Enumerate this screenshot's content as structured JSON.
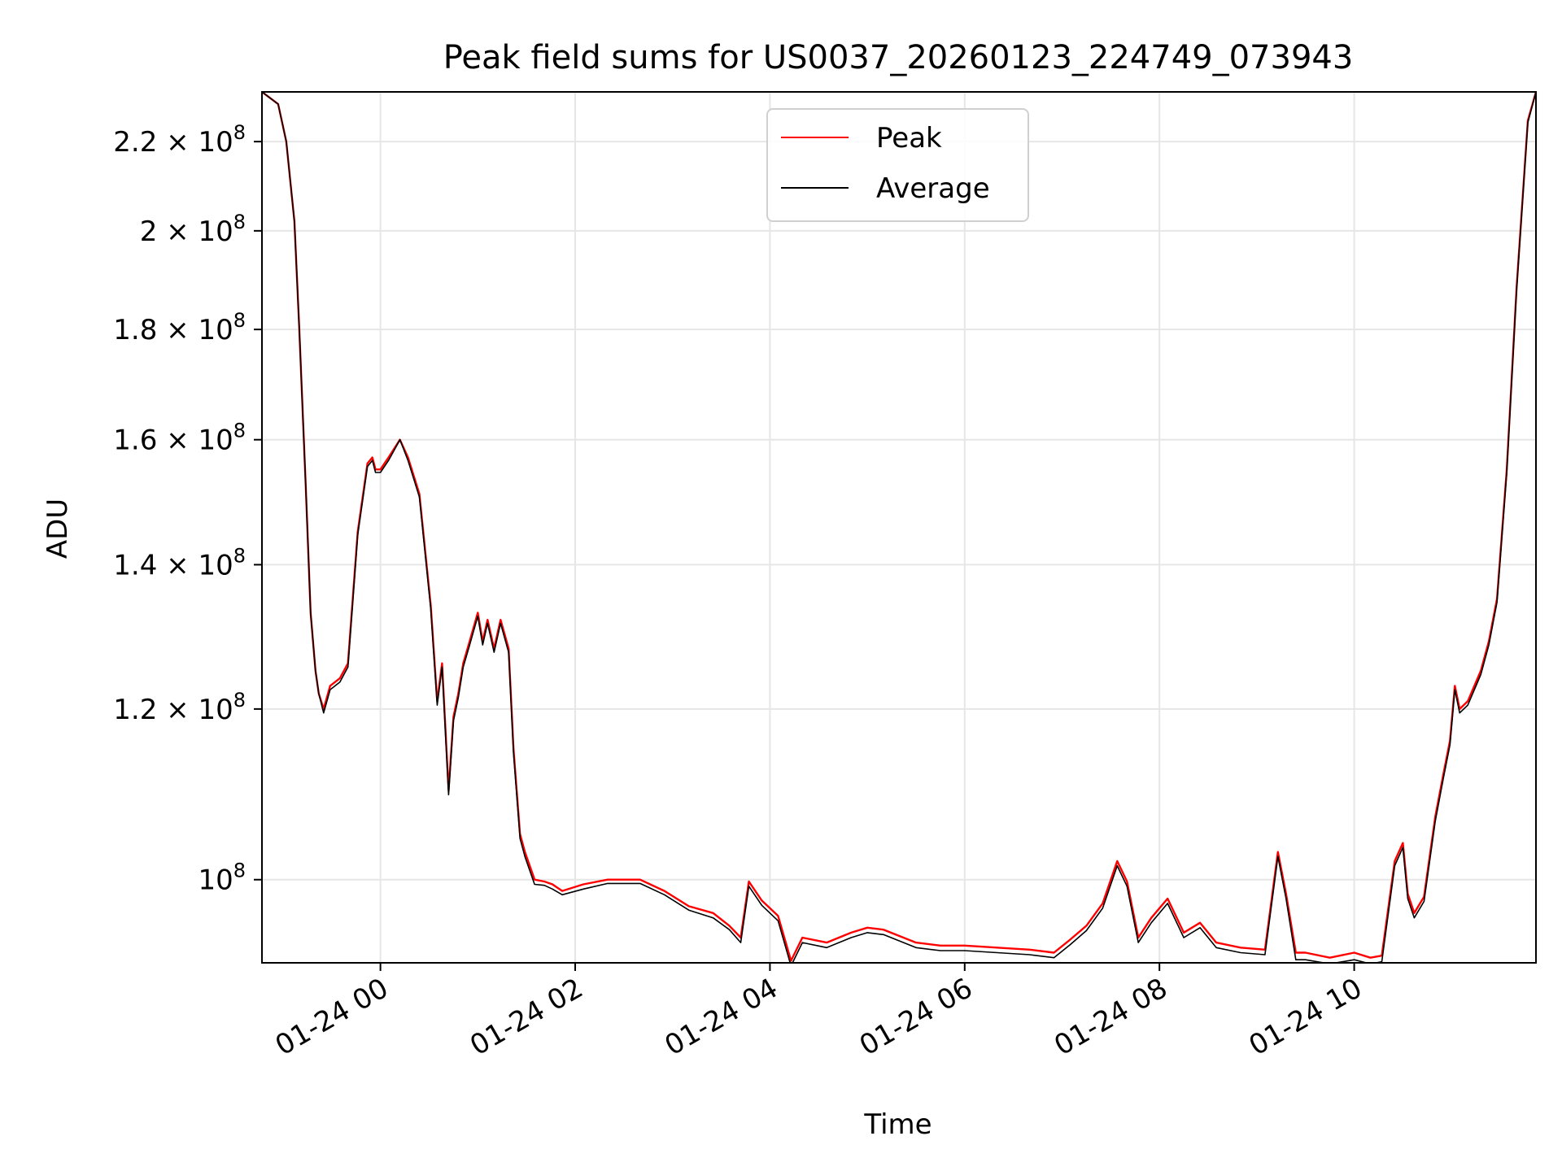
{
  "chart_data": {
    "type": "line",
    "title": "Peak field sums for US0037_20260123_224749_073943",
    "xlabel": "Time",
    "ylabel": "ADU",
    "yscale": "log",
    "xlim": [
      "2026-01-23 22:47",
      "2026-01-24 11:52"
    ],
    "ylim": [
      91500000.0,
      232000000.0
    ],
    "grid": true,
    "legend_position": "upper center",
    "x_ticks": [
      {
        "time": "2026-01-24 00:00",
        "label": "01-24 00"
      },
      {
        "time": "2026-01-24 02:00",
        "label": "01-24 02"
      },
      {
        "time": "2026-01-24 04:00",
        "label": "01-24 04"
      },
      {
        "time": "2026-01-24 06:00",
        "label": "01-24 06"
      },
      {
        "time": "2026-01-24 08:00",
        "label": "01-24 08"
      },
      {
        "time": "2026-01-24 10:00",
        "label": "01-24 10"
      }
    ],
    "y_ticks": [
      {
        "value": 100000000.0,
        "mantissa": "",
        "exponent": "8"
      },
      {
        "value": 120000000.0,
        "mantissa": "1.2",
        "exponent": "8"
      },
      {
        "value": 140000000.0,
        "mantissa": "1.4",
        "exponent": "8"
      },
      {
        "value": 160000000.0,
        "mantissa": "1.6",
        "exponent": "8"
      },
      {
        "value": 180000000.0,
        "mantissa": "1.8",
        "exponent": "8"
      },
      {
        "value": 200000000.0,
        "mantissa": "2",
        "exponent": "8"
      },
      {
        "value": 220000000.0,
        "mantissa": "2.2",
        "exponent": "8"
      }
    ],
    "series": [
      {
        "name": "Peak",
        "color": "#ff0000",
        "x": [
          "2026-01-23 22:47",
          "2026-01-23 22:57",
          "2026-01-23 23:02",
          "2026-01-23 23:07",
          "2026-01-23 23:10",
          "2026-01-23 23:14",
          "2026-01-23 23:17",
          "2026-01-23 23:20",
          "2026-01-23 23:22",
          "2026-01-23 23:25",
          "2026-01-23 23:29",
          "2026-01-23 23:35",
          "2026-01-23 23:40",
          "2026-01-23 23:46",
          "2026-01-23 23:52",
          "2026-01-23 23:55",
          "2026-01-23 23:57",
          "2026-01-24 00:00",
          "2026-01-24 00:05",
          "2026-01-24 00:12",
          "2026-01-24 00:17",
          "2026-01-24 00:24",
          "2026-01-24 00:31",
          "2026-01-24 00:35",
          "2026-01-24 00:38",
          "2026-01-24 00:42",
          "2026-01-24 00:45",
          "2026-01-24 00:48",
          "2026-01-24 00:51",
          "2026-01-24 00:55",
          "2026-01-24 01:00",
          "2026-01-24 01:03",
          "2026-01-24 01:06",
          "2026-01-24 01:10",
          "2026-01-24 01:14",
          "2026-01-24 01:19",
          "2026-01-24 01:22",
          "2026-01-24 01:26",
          "2026-01-24 01:29",
          "2026-01-24 01:35",
          "2026-01-24 01:41",
          "2026-01-24 01:46",
          "2026-01-24 01:52",
          "2026-01-24 02:05",
          "2026-01-24 02:20",
          "2026-01-24 02:40",
          "2026-01-24 02:55",
          "2026-01-24 03:10",
          "2026-01-24 03:25",
          "2026-01-24 03:35",
          "2026-01-24 03:42",
          "2026-01-24 03:47",
          "2026-01-24 03:55",
          "2026-01-24 04:05",
          "2026-01-24 04:13",
          "2026-01-24 04:20",
          "2026-01-24 04:35",
          "2026-01-24 04:50",
          "2026-01-24 05:00",
          "2026-01-24 05:10",
          "2026-01-24 05:30",
          "2026-01-24 05:45",
          "2026-01-24 06:00",
          "2026-01-24 06:20",
          "2026-01-24 06:40",
          "2026-01-24 06:55",
          "2026-01-24 07:05",
          "2026-01-24 07:15",
          "2026-01-24 07:25",
          "2026-01-24 07:34",
          "2026-01-24 07:40",
          "2026-01-24 07:47",
          "2026-01-24 07:55",
          "2026-01-24 08:05",
          "2026-01-24 08:15",
          "2026-01-24 08:25",
          "2026-01-24 08:35",
          "2026-01-24 08:50",
          "2026-01-24 09:05",
          "2026-01-24 09:13",
          "2026-01-24 09:18",
          "2026-01-24 09:24",
          "2026-01-24 09:30",
          "2026-01-24 09:45",
          "2026-01-24 10:00",
          "2026-01-24 10:10",
          "2026-01-24 10:17",
          "2026-01-24 10:25",
          "2026-01-24 10:30",
          "2026-01-24 10:33",
          "2026-01-24 10:37",
          "2026-01-24 10:43",
          "2026-01-24 10:50",
          "2026-01-24 10:55",
          "2026-01-24 10:59",
          "2026-01-24 11:02",
          "2026-01-24 11:05",
          "2026-01-24 11:10",
          "2026-01-24 11:18",
          "2026-01-24 11:23",
          "2026-01-24 11:28",
          "2026-01-24 11:34",
          "2026-01-24 11:40",
          "2026-01-24 11:47",
          "2026-01-24 11:52"
        ],
        "y": [
          232000000.0,
          229000000.0,
          220000000.0,
          202000000.0,
          180000000.0,
          152000000.0,
          133000000.0,
          125000000.0,
          122000000.0,
          120000000.0,
          123000000.0,
          124000000.0,
          126000000.0,
          145000000.0,
          156000000.0,
          157000000.0,
          155000000.0,
          155000000.0,
          157000000.0,
          160000000.0,
          157000000.0,
          151000000.0,
          134000000.0,
          121000000.0,
          126000000.0,
          110000000.0,
          119000000.0,
          122000000.0,
          126000000.0,
          129000000.0,
          133000000.0,
          129000000.0,
          132000000.0,
          128000000.0,
          132000000.0,
          128000000.0,
          115000000.0,
          105000000.0,
          103000000.0,
          100000000.0,
          99800000.0,
          99500000.0,
          98800000.0,
          99500000.0,
          100000000.0,
          100000000.0,
          98800000.0,
          97200000.0,
          96500000.0,
          95200000.0,
          94000000.0,
          99800000.0,
          97800000.0,
          96200000.0,
          91700000.0,
          94000000.0,
          93500000.0,
          94500000.0,
          95000000.0,
          94800000.0,
          93500000.0,
          93200000.0,
          93200000.0,
          93000000.0,
          92800000.0,
          92500000.0,
          93800000.0,
          95200000.0,
          97500000.0,
          102000000.0,
          99800000.0,
          94000000.0,
          96000000.0,
          98000000.0,
          94500000.0,
          95500000.0,
          93500000.0,
          93000000.0,
          92800000.0,
          103000000.0,
          98500000.0,
          92500000.0,
          92500000.0,
          92000000.0,
          92500000.0,
          92000000.0,
          92200000.0,
          102000000.0,
          104000000.0,
          98500000.0,
          96500000.0,
          98200000.0,
          107000000.0,
          112000000.0,
          116000000.0,
          123000000.0,
          120000000.0,
          121000000.0,
          125000000.0,
          129000000.0,
          135000000.0,
          155000000.0,
          188000000.0,
          225000000.0,
          232000000.0
        ]
      },
      {
        "name": "Average",
        "color": "#000000",
        "x": [
          "2026-01-23 22:47",
          "2026-01-23 22:57",
          "2026-01-23 23:02",
          "2026-01-23 23:07",
          "2026-01-23 23:10",
          "2026-01-23 23:14",
          "2026-01-23 23:17",
          "2026-01-23 23:20",
          "2026-01-23 23:22",
          "2026-01-23 23:25",
          "2026-01-23 23:29",
          "2026-01-23 23:35",
          "2026-01-23 23:40",
          "2026-01-23 23:46",
          "2026-01-23 23:52",
          "2026-01-23 23:55",
          "2026-01-23 23:57",
          "2026-01-24 00:00",
          "2026-01-24 00:05",
          "2026-01-24 00:12",
          "2026-01-24 00:17",
          "2026-01-24 00:24",
          "2026-01-24 00:31",
          "2026-01-24 00:35",
          "2026-01-24 00:38",
          "2026-01-24 00:42",
          "2026-01-24 00:45",
          "2026-01-24 00:48",
          "2026-01-24 00:51",
          "2026-01-24 00:55",
          "2026-01-24 01:00",
          "2026-01-24 01:03",
          "2026-01-24 01:06",
          "2026-01-24 01:10",
          "2026-01-24 01:14",
          "2026-01-24 01:19",
          "2026-01-24 01:22",
          "2026-01-24 01:26",
          "2026-01-24 01:29",
          "2026-01-24 01:35",
          "2026-01-24 01:41",
          "2026-01-24 01:46",
          "2026-01-24 01:52",
          "2026-01-24 02:05",
          "2026-01-24 02:20",
          "2026-01-24 02:40",
          "2026-01-24 02:55",
          "2026-01-24 03:10",
          "2026-01-24 03:25",
          "2026-01-24 03:35",
          "2026-01-24 03:42",
          "2026-01-24 03:47",
          "2026-01-24 03:55",
          "2026-01-24 04:05",
          "2026-01-24 04:13",
          "2026-01-24 04:20",
          "2026-01-24 04:35",
          "2026-01-24 04:50",
          "2026-01-24 05:00",
          "2026-01-24 05:10",
          "2026-01-24 05:30",
          "2026-01-24 05:45",
          "2026-01-24 06:00",
          "2026-01-24 06:20",
          "2026-01-24 06:40",
          "2026-01-24 06:55",
          "2026-01-24 07:05",
          "2026-01-24 07:15",
          "2026-01-24 07:25",
          "2026-01-24 07:34",
          "2026-01-24 07:40",
          "2026-01-24 07:47",
          "2026-01-24 07:55",
          "2026-01-24 08:05",
          "2026-01-24 08:15",
          "2026-01-24 08:25",
          "2026-01-24 08:35",
          "2026-01-24 08:50",
          "2026-01-24 09:05",
          "2026-01-24 09:13",
          "2026-01-24 09:18",
          "2026-01-24 09:24",
          "2026-01-24 09:30",
          "2026-01-24 09:45",
          "2026-01-24 10:00",
          "2026-01-24 10:10",
          "2026-01-24 10:17",
          "2026-01-24 10:25",
          "2026-01-24 10:30",
          "2026-01-24 10:33",
          "2026-01-24 10:37",
          "2026-01-24 10:43",
          "2026-01-24 10:50",
          "2026-01-24 10:55",
          "2026-01-24 10:59",
          "2026-01-24 11:02",
          "2026-01-24 11:05",
          "2026-01-24 11:10",
          "2026-01-24 11:18",
          "2026-01-24 11:23",
          "2026-01-24 11:28",
          "2026-01-24 11:34",
          "2026-01-24 11:40",
          "2026-01-24 11:47",
          "2026-01-24 11:52"
        ],
        "y": [
          232000000.0,
          229000000.0,
          220000000.0,
          202000000.0,
          180000000.0,
          152000000.0,
          133000000.0,
          125000000.0,
          122000000.0,
          119500000.0,
          122500000.0,
          123500000.0,
          125500000.0,
          144500000.0,
          155500000.0,
          156500000.0,
          154500000.0,
          154500000.0,
          156500000.0,
          160000000.0,
          156500000.0,
          150500000.0,
          133500000.0,
          120500000.0,
          125500000.0,
          109500000.0,
          118500000.0,
          121500000.0,
          125500000.0,
          128500000.0,
          132500000.0,
          128500000.0,
          131500000.0,
          127500000.0,
          131500000.0,
          127500000.0,
          114500000.0,
          104500000.0,
          102500000.0,
          99500000.0,
          99400000.0,
          99000000.0,
          98400000.0,
          99000000.0,
          99600000.0,
          99600000.0,
          98400000.0,
          96800000.0,
          96000000.0,
          94800000.0,
          93500000.0,
          99300000.0,
          97300000.0,
          95700000.0,
          91200000.0,
          93500000.0,
          93000000.0,
          94000000.0,
          94500000.0,
          94300000.0,
          93000000.0,
          92700000.0,
          92700000.0,
          92500000.0,
          92300000.0,
          92000000.0,
          93300000.0,
          94700000.0,
          97000000.0,
          101500000.0,
          99300000.0,
          93500000.0,
          95500000.0,
          97500000.0,
          94000000.0,
          95000000.0,
          93000000.0,
          92500000.0,
          92300000.0,
          102500000.0,
          98000000.0,
          91800000.0,
          91800000.0,
          91400000.0,
          91800000.0,
          91400000.0,
          91600000.0,
          101500000.0,
          103500000.0,
          98000000.0,
          96000000.0,
          97700000.0,
          106500000.0,
          111500000.0,
          115500000.0,
          122500000.0,
          119500000.0,
          120500000.0,
          124500000.0,
          128500000.0,
          134500000.0,
          154500000.0,
          187500000.0,
          224500000.0,
          232000000.0
        ]
      }
    ]
  }
}
